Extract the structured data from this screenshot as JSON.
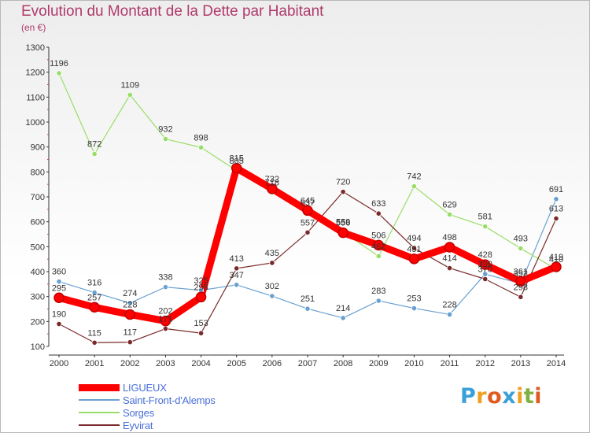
{
  "title": "Evolution du Montant de la Dette par Habitant",
  "subtitle": "(en €)",
  "logo": {
    "text": "Proxiti",
    "letters": [
      {
        "ch": "P",
        "color": "#3aa0d8"
      },
      {
        "ch": "r",
        "color": "#f0a020"
      },
      {
        "ch": "o",
        "color": "#e05a20"
      },
      {
        "ch": "x",
        "color": "#3aa0d8"
      },
      {
        "ch": "i",
        "color": "#f0a020"
      },
      {
        "ch": "t",
        "color": "#80b040"
      },
      {
        "ch": "i",
        "color": "#e05a20"
      }
    ]
  },
  "chart_data": {
    "type": "line",
    "title": "Evolution du Montant de la Dette par Habitant",
    "subtitle": "(en €)",
    "x": [
      2000,
      2001,
      2002,
      2003,
      2004,
      2005,
      2006,
      2007,
      2008,
      2009,
      2010,
      2011,
      2012,
      2013,
      2014
    ],
    "ylim": [
      100,
      1300
    ],
    "yticks": [
      100,
      200,
      300,
      400,
      500,
      600,
      700,
      800,
      900,
      1000,
      1100,
      1200,
      1300
    ],
    "grid": false,
    "legend_position": "bottom-left",
    "series": [
      {
        "name": "LIGUEUX",
        "color": "#ff0000",
        "width": 9,
        "marker": 6,
        "values": [
          295,
          257,
          228,
          202,
          298,
          815,
          732,
          645,
          556,
          506,
          451,
          498,
          428,
          361,
          419
        ]
      },
      {
        "name": "Saint-Front-d'Alemps",
        "color": "#6aa0d0",
        "width": 1.2,
        "marker": 3.2,
        "values": [
          360,
          316,
          274,
          338,
          325,
          347,
          302,
          251,
          214,
          283,
          253,
          228,
          390,
          352,
          691
        ]
      },
      {
        "name": "Sorges",
        "color": "#99dd66",
        "width": 1.2,
        "marker": 3.2,
        "values": [
          1196,
          872,
          1109,
          932,
          898,
          805,
          718,
          637,
          559,
          462,
          742,
          629,
          581,
          493,
          410
        ]
      },
      {
        "name": "Eyvirat",
        "color": "#7a2a2a",
        "width": 1.2,
        "marker": 3.2,
        "values": [
          190,
          115,
          117,
          171,
          153,
          413,
          435,
          557,
          720,
          633,
          494,
          414,
          370,
          298,
          613
        ]
      }
    ]
  }
}
